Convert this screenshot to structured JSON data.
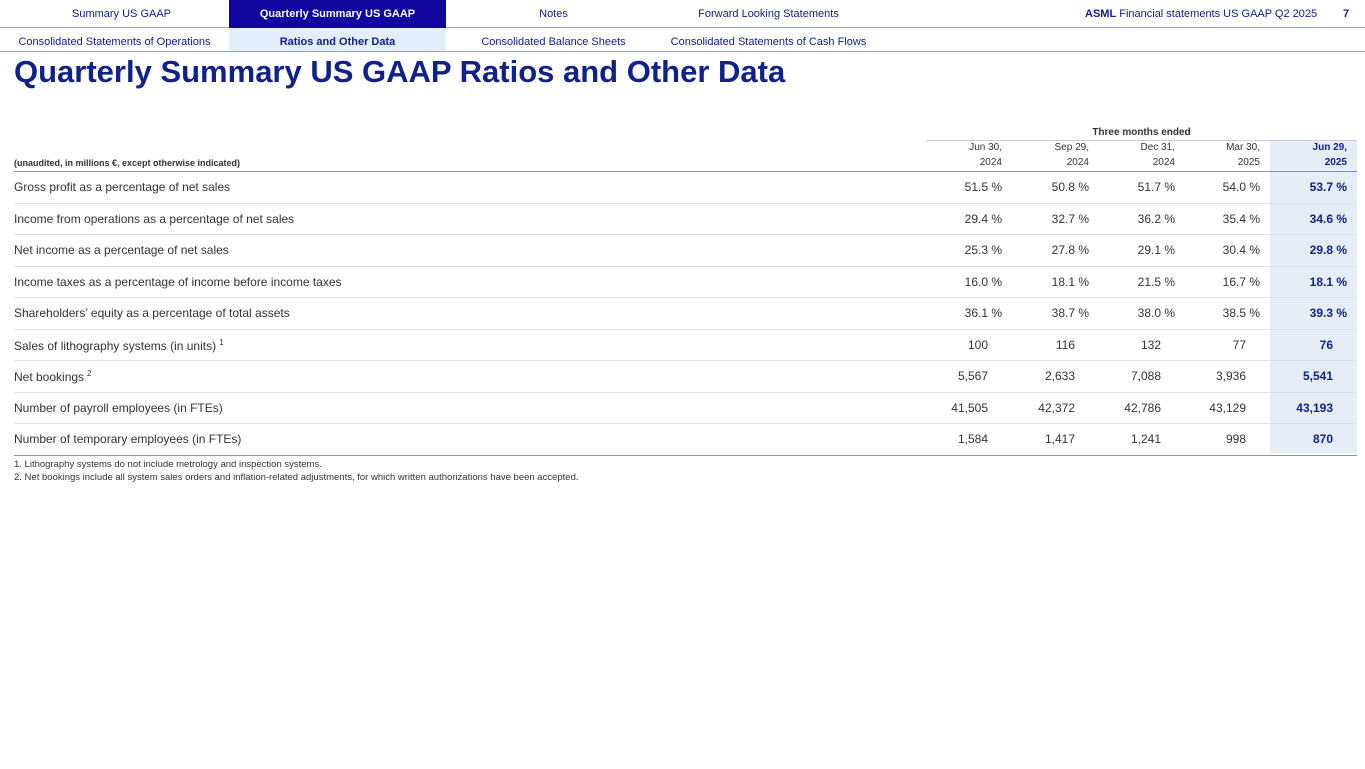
{
  "nav": {
    "tabs": [
      "Summary US GAAP",
      "Quarterly Summary US GAAP",
      "Notes",
      "Forward Looking Statements"
    ],
    "brand": "ASML",
    "doc_title": "Financial statements US GAAP Q2 2025",
    "page": "7",
    "subtabs": [
      "Consolidated Statements of Operations",
      "Ratios and Other Data",
      "Consolidated Balance Sheets",
      "Consolidated Statements of Cash Flows"
    ]
  },
  "title": "Quarterly Summary US GAAP Ratios and Other Data",
  "table": {
    "unit_note": "(unaudited, in millions €, except otherwise indicated)",
    "group_header": "Three months ended",
    "columns": [
      [
        "Jun 30,",
        "2024"
      ],
      [
        "Sep 29,",
        "2024"
      ],
      [
        "Dec 31,",
        "2024"
      ],
      [
        "Mar 30,",
        "2025"
      ],
      [
        "Jun 29,",
        "2025"
      ]
    ],
    "rows": [
      {
        "label": "Gross profit as a percentage of net sales",
        "values": [
          "51.5 %",
          "50.8 %",
          "51.7 %",
          "54.0 %",
          "53.7 %"
        ]
      },
      {
        "label": "Income from operations as a percentage of net sales",
        "values": [
          "29.4 %",
          "32.7 %",
          "36.2 %",
          "35.4 %",
          "34.6 %"
        ]
      },
      {
        "label": "Net income as a percentage of net sales",
        "values": [
          "25.3 %",
          "27.8 %",
          "29.1 %",
          "30.4 %",
          "29.8 %"
        ]
      },
      {
        "label": "Income taxes as a percentage of income before income taxes",
        "values": [
          "16.0 %",
          "18.1 %",
          "21.5 %",
          "16.7 %",
          "18.1 %"
        ]
      },
      {
        "label": "Shareholders’ equity as a percentage of total assets",
        "values": [
          "36.1 %",
          "38.7 %",
          "38.0 %",
          "38.5 %",
          "39.3 %"
        ]
      },
      {
        "label": "Sales of lithography systems (in units)",
        "note": "1",
        "values": [
          "100",
          "116",
          "132",
          "77",
          "76"
        ]
      },
      {
        "label": "Net bookings",
        "note": "2",
        "values": [
          "5,567",
          "2,633",
          "7,088",
          "3,936",
          "5,541"
        ]
      },
      {
        "label": "Number of payroll employees (in FTEs)",
        "values": [
          "41,505",
          "42,372",
          "42,786",
          "43,129",
          "43,193"
        ]
      },
      {
        "label": "Number of temporary employees (in FTEs)",
        "values": [
          "1,584",
          "1,417",
          "1,241",
          "998",
          "870"
        ]
      }
    ]
  },
  "footnotes": [
    "1.  Lithography systems do not include metrology and inspection systems.",
    "2.  Net bookings include all system sales orders and inflation-related adjustments, for which written authorizations have been accepted."
  ]
}
